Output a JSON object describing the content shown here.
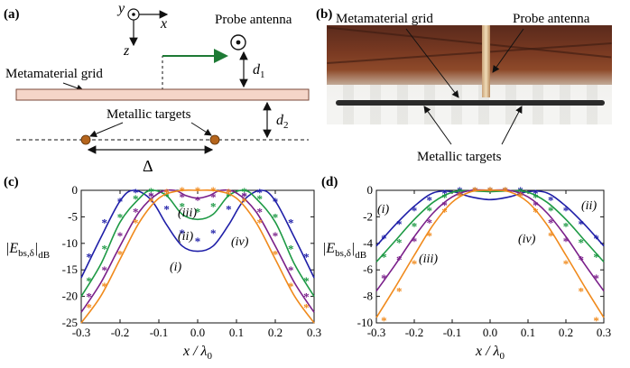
{
  "panel_labels": {
    "a": "(a)",
    "b": "(b)",
    "c": "(c)",
    "d": "(d)"
  },
  "diagram_a": {
    "axis_y": "y",
    "axis_x": "x",
    "axis_z": "z",
    "probe_antenna": "Probe antenna",
    "metamaterial_grid": "Metamaterial grid",
    "metallic_targets": "Metallic targets",
    "d1": "d",
    "d1_sub": "1",
    "d2": "d",
    "d2_sub": "2",
    "delta": "Δ",
    "colors": {
      "grid_fill": "#f5d5c8",
      "grid_stroke": "#7a4a3a",
      "arrow": "#1e7a35",
      "target": "#b5651d"
    }
  },
  "photo_b": {
    "metamaterial_grid": "Metamaterial grid",
    "probe_antenna": "Probe antenna",
    "metallic_targets": "Metallic targets"
  },
  "chart_data": [
    {
      "type": "line",
      "panel": "(c)",
      "xlabel": "x / λ0",
      "ylabel": "|E_bs,δ|dB",
      "xlim": [
        -0.3,
        0.3
      ],
      "ylim": [
        -25,
        0
      ],
      "xticks": [
        "-0.3",
        "-0.2",
        "-0.1",
        "0.0",
        "0.1",
        "0.2",
        "0.3"
      ],
      "yticks": [
        "0",
        "-5",
        "-10",
        "-15",
        "-20",
        "-25"
      ],
      "annotations": [
        "(i)",
        "(ii)",
        "(iii)",
        "(iv)"
      ],
      "series": [
        {
          "color": "#1f1fa8",
          "line": {
            "x": [
              -0.3,
              -0.25,
              -0.2,
              -0.165,
              -0.12,
              -0.08,
              -0.04,
              0,
              0.04,
              0.08,
              0.12,
              0.165,
              0.2,
              0.25,
              0.3
            ],
            "y": [
              -16.5,
              -9,
              -2,
              0,
              -1.8,
              -6.5,
              -10.5,
              -11.5,
              -10.5,
              -6.5,
              -1.8,
              0,
              -2,
              -9,
              -16.5
            ]
          },
          "markers": {
            "x": [
              -0.28,
              -0.24,
              -0.2,
              -0.16,
              -0.12,
              -0.08,
              -0.04,
              0,
              0.04,
              0.08,
              0.12,
              0.16,
              0.2,
              0.24,
              0.28
            ],
            "y": [
              -12.5,
              -6,
              -2,
              -0.3,
              -1,
              -3.5,
              -8,
              -9.5,
              -8,
              -3.5,
              -1,
              -0.3,
              -2,
              -6,
              -12.5
            ]
          }
        },
        {
          "color": "#1e9a45",
          "line": {
            "x": [
              -0.3,
              -0.25,
              -0.2,
              -0.15,
              -0.12,
              -0.08,
              -0.04,
              0,
              0.04,
              0.08,
              0.12,
              0.15,
              0.2,
              0.25,
              0.3
            ],
            "y": [
              -20,
              -14,
              -6,
              -1.5,
              0,
              -1,
              -4.5,
              -5.5,
              -4.5,
              -1,
              0,
              -1.5,
              -6,
              -14,
              -20
            ]
          },
          "markers": {
            "x": [
              -0.28,
              -0.24,
              -0.2,
              -0.16,
              -0.12,
              -0.08,
              -0.04,
              0,
              0.04,
              0.08,
              0.12,
              0.16,
              0.2,
              0.24,
              0.28
            ],
            "y": [
              -17,
              -11,
              -5,
              -1.5,
              -0.2,
              -1,
              -3,
              -4,
              -3,
              -1,
              -0.2,
              -1.5,
              -5,
              -11,
              -17
            ]
          }
        },
        {
          "color": "#7a1f8a",
          "line": {
            "x": [
              -0.3,
              -0.25,
              -0.2,
              -0.15,
              -0.1,
              -0.06,
              -0.03,
              0,
              0.03,
              0.06,
              0.1,
              0.15,
              0.2,
              0.25,
              0.3
            ],
            "y": [
              -23,
              -17.5,
              -10.5,
              -4,
              -0.5,
              0,
              -1,
              -1.5,
              -1,
              0,
              -0.5,
              -4,
              -10.5,
              -17.5,
              -23
            ]
          },
          "markers": {
            "x": [
              -0.28,
              -0.24,
              -0.2,
              -0.16,
              -0.12,
              -0.08,
              -0.04,
              0,
              0.04,
              0.08,
              0.12,
              0.16,
              0.2,
              0.24,
              0.28
            ],
            "y": [
              -20,
              -15,
              -8.5,
              -4,
              -1,
              -0.3,
              -1.2,
              -1.8,
              -1.2,
              -0.3,
              -1,
              -4,
              -8.5,
              -15,
              -20
            ]
          }
        },
        {
          "color": "#f08a1c",
          "line": {
            "x": [
              -0.3,
              -0.25,
              -0.2,
              -0.15,
              -0.1,
              -0.05,
              0,
              0.05,
              0.1,
              0.15,
              0.2,
              0.25,
              0.3
            ],
            "y": [
              -25,
              -20,
              -13,
              -6,
              -1.5,
              -0.1,
              0,
              -0.1,
              -1.5,
              -6,
              -13,
              -20,
              -25
            ]
          },
          "markers": {
            "x": [
              -0.28,
              -0.24,
              -0.2,
              -0.16,
              -0.12,
              -0.08,
              -0.04,
              0,
              0.04,
              0.08,
              0.12,
              0.16,
              0.2,
              0.24,
              0.28
            ],
            "y": [
              -22,
              -18,
              -12,
              -6,
              -2,
              -0.3,
              0,
              0,
              0,
              -0.3,
              -2,
              -6,
              -12,
              -18,
              -22
            ]
          }
        }
      ]
    },
    {
      "type": "line",
      "panel": "(d)",
      "xlabel": "x / λ0",
      "ylabel": "|E_bs,δ|dB",
      "xlim": [
        -0.3,
        0.3
      ],
      "ylim": [
        -10,
        0
      ],
      "xticks": [
        "-0.3",
        "-0.2",
        "-0.1",
        "0.0",
        "0.1",
        "0.2",
        "0.3"
      ],
      "yticks": [
        "0",
        "-2",
        "-4",
        "-6",
        "-8",
        "-10"
      ],
      "annotations": [
        "(i)",
        "(ii)",
        "(iii)",
        "(iv)"
      ],
      "series": [
        {
          "color": "#1f1fa8",
          "line": {
            "x": [
              -0.3,
              -0.25,
              -0.2,
              -0.15,
              -0.1,
              -0.05,
              0,
              0.05,
              0.1,
              0.15,
              0.2,
              0.25,
              0.3
            ],
            "y": [
              -4.2,
              -2.6,
              -1.2,
              -0.2,
              -0.1,
              -0.5,
              -0.7,
              -0.5,
              -0.1,
              -0.2,
              -1.2,
              -2.6,
              -4.2
            ]
          },
          "markers": {
            "x": [
              -0.28,
              -0.24,
              -0.2,
              -0.16,
              -0.12,
              -0.08,
              -0.04,
              0,
              0.04,
              0.08,
              0.12,
              0.16,
              0.2,
              0.24,
              0.28
            ],
            "y": [
              -3.6,
              -2.5,
              -1.5,
              -0.7,
              -0.2,
              0,
              0,
              0,
              0,
              0,
              -0.2,
              -0.7,
              -1.5,
              -2.5,
              -3.6
            ]
          }
        },
        {
          "color": "#1e9a45",
          "line": {
            "x": [
              -0.3,
              -0.25,
              -0.2,
              -0.15,
              -0.1,
              -0.05,
              0,
              0.05,
              0.1,
              0.15,
              0.2,
              0.25,
              0.3
            ],
            "y": [
              -5.4,
              -3.8,
              -2.2,
              -0.9,
              -0.15,
              -0.05,
              -0.1,
              -0.05,
              -0.15,
              -0.9,
              -2.2,
              -3.8,
              -5.4
            ]
          },
          "markers": {
            "x": [
              -0.28,
              -0.24,
              -0.2,
              -0.16,
              -0.12,
              -0.08,
              -0.04,
              0,
              0.04,
              0.08,
              0.12,
              0.16,
              0.2,
              0.24,
              0.28
            ],
            "y": [
              -5,
              -3.9,
              -2.7,
              -1.5,
              -0.5,
              -0.1,
              0,
              0,
              0,
              -0.1,
              -0.5,
              -1.5,
              -2.7,
              -3.9,
              -5
            ]
          }
        },
        {
          "color": "#7a1f8a",
          "line": {
            "x": [
              -0.3,
              -0.25,
              -0.2,
              -0.15,
              -0.1,
              -0.05,
              0,
              0.05,
              0.1,
              0.15,
              0.2,
              0.25,
              0.3
            ],
            "y": [
              -7.6,
              -5.6,
              -3.5,
              -1.7,
              -0.5,
              0,
              0,
              0,
              -0.5,
              -1.7,
              -3.5,
              -5.6,
              -7.6
            ]
          },
          "markers": {
            "x": [
              -0.28,
              -0.24,
              -0.2,
              -0.16,
              -0.12,
              -0.08,
              -0.04,
              0,
              0.04,
              0.08,
              0.12,
              0.16,
              0.2,
              0.24,
              0.28
            ],
            "y": [
              -6.6,
              -5.2,
              -3.8,
              -2.4,
              -1.1,
              -0.3,
              0,
              0,
              0,
              -0.3,
              -1.1,
              -2.4,
              -3.8,
              -5.2,
              -6.6
            ]
          }
        },
        {
          "color": "#f08a1c",
          "line": {
            "x": [
              -0.3,
              -0.25,
              -0.2,
              -0.15,
              -0.1,
              -0.05,
              0,
              0.05,
              0.1,
              0.15,
              0.2,
              0.25,
              0.3
            ],
            "y": [
              -9.6,
              -7.3,
              -4.9,
              -2.6,
              -0.9,
              -0.1,
              0,
              -0.1,
              -0.9,
              -2.6,
              -4.9,
              -7.3,
              -9.6
            ]
          },
          "markers": {
            "x": [
              -0.28,
              -0.24,
              -0.2,
              -0.16,
              -0.12,
              -0.08,
              -0.04,
              0,
              0.04,
              0.08,
              0.12,
              0.16,
              0.2,
              0.24,
              0.28
            ],
            "y": [
              -9.8,
              -7.6,
              -5.5,
              -3.4,
              -1.6,
              -0.4,
              0,
              0,
              0,
              -0.4,
              -1.6,
              -3.4,
              -5.5,
              -7.6,
              -9.8
            ]
          }
        }
      ]
    }
  ]
}
